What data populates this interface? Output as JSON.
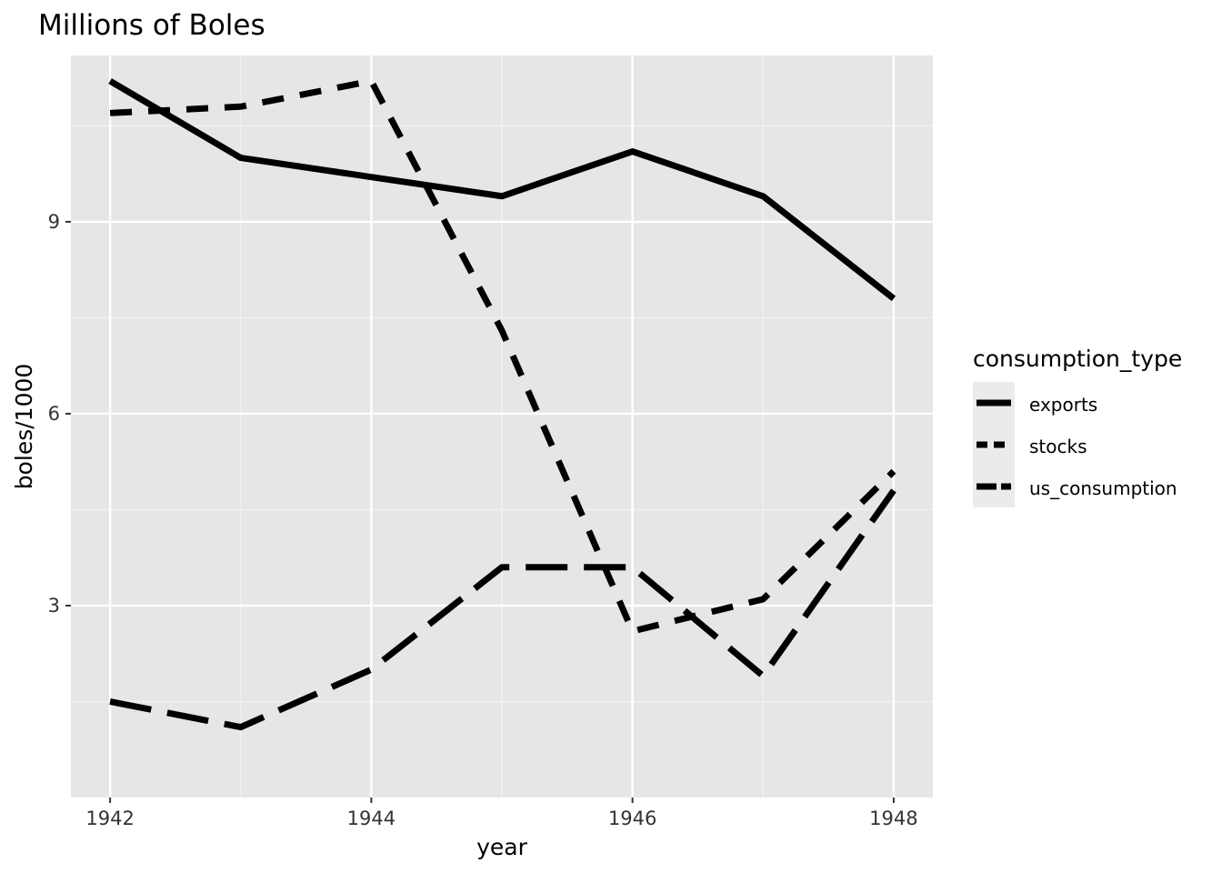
{
  "chart_data": {
    "type": "line",
    "title": "Millions of Boles",
    "xlabel": "year",
    "ylabel": "boles/1000",
    "x": [
      1942,
      1943,
      1944,
      1945,
      1946,
      1947,
      1948
    ],
    "xticks": [
      1942,
      1944,
      1946,
      1948
    ],
    "yticks": [
      3,
      6,
      9
    ],
    "xlim": [
      1941.7,
      1948.3
    ],
    "ylim": [
      0.0,
      11.6
    ],
    "grid": true,
    "legend_title": "consumption_type",
    "legend_position": "right",
    "series": [
      {
        "name": "exports",
        "values": [
          11.2,
          10.0,
          9.7,
          9.4,
          10.1,
          9.4,
          7.8
        ]
      },
      {
        "name": "stocks",
        "values": [
          10.7,
          10.8,
          11.2,
          7.3,
          2.6,
          3.1,
          5.1
        ]
      },
      {
        "name": "us_consumption",
        "values": [
          1.5,
          1.1,
          2.0,
          3.6,
          3.6,
          1.9,
          4.8
        ]
      }
    ]
  }
}
